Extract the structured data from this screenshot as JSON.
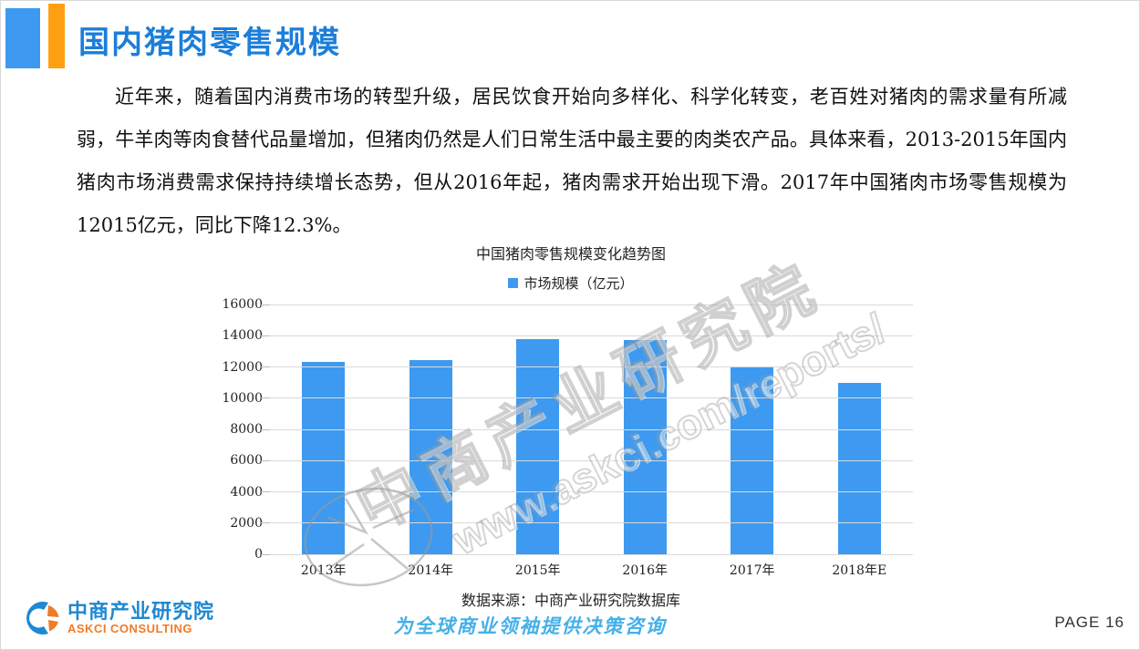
{
  "slide": {
    "title": "国内猪肉零售规模",
    "page_label": "PAGE 16",
    "tagline": "为全球商业领袖提供决策咨询"
  },
  "paragraph": {
    "text": "近年来，随着国内消费市场的转型升级，居民饮食开始向多样化、科学化转变，老百姓对猪肉的需求量有所减弱，牛羊肉等肉食替代品量增加，但猪肉仍然是人们日常生活中最主要的肉类农产品。具体来看，2013-2015年国内猪肉市场消费需求保持持续增长态势，但从2016年起，猪肉需求开始出现下滑。2017年中国猪肉市场零售规模为12015亿元，同比下降12.3%。"
  },
  "chart_data": {
    "type": "bar",
    "title": "中国猪肉零售规模变化趋势图",
    "legend": "市场规模（亿元）",
    "legend_position": "top",
    "categories": [
      "2013年",
      "2014年",
      "2015年",
      "2016年",
      "2017年",
      "2018年E"
    ],
    "values": [
      12330,
      12450,
      13800,
      13700,
      12015,
      11000
    ],
    "ylim": [
      0,
      16000
    ],
    "ytick_step": 2000,
    "grid": true,
    "bar_color": "#3D9AF0",
    "source": "数据来源：中商产业研究院数据库"
  },
  "watermark": {
    "line1": "中商产业研究院",
    "line2": "www.askci.com/reports/"
  },
  "logo": {
    "cn": "中商产业研究院",
    "en": "ASKCI CONSULTING"
  },
  "colors": {
    "accent_blue": "#3D9AF0",
    "accent_orange": "#FFA013",
    "title_blue": "#1B7ED9",
    "gridline": "#D9D9D9",
    "tagline_blue": "#45B0E8"
  }
}
